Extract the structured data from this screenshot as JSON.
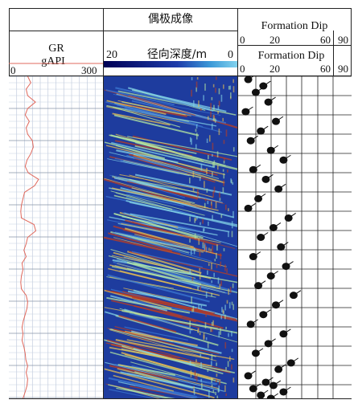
{
  "tracks": {
    "gr": {
      "label": "GR",
      "unit": "gAPI",
      "scale_min": "0",
      "scale_max": "300",
      "curve_color": "#e0685c"
    },
    "dipole": {
      "title": "偶极成像",
      "label": "径向深度/m",
      "scale_left": "20",
      "scale_right": "0"
    },
    "dip": {
      "title": "Formation Dip",
      "scale_ticks_top": [
        "0",
        "20",
        "60",
        "90"
      ],
      "sub_title": "Formation Dip",
      "scale_ticks_sub": [
        "0",
        "20",
        "60",
        "90"
      ]
    }
  },
  "chart_data": [
    {
      "type": "line",
      "title": "",
      "xlabel": "GR (gAPI)",
      "ylabel": "",
      "xlim": [
        0,
        300
      ],
      "series": [
        {
          "name": "GR",
          "x": [
            60,
            70,
            55,
            60,
            85,
            60,
            52,
            65,
            55,
            60,
            75,
            78,
            70,
            58,
            52,
            62,
            95,
            82,
            50,
            45,
            40,
            38,
            40,
            80,
            86,
            60,
            55,
            48,
            55,
            42,
            45,
            40,
            38,
            40,
            55,
            60,
            58,
            52,
            46,
            42,
            45,
            42,
            48,
            52,
            54,
            60,
            55,
            60,
            58,
            52,
            45,
            45,
            30,
            42,
            55,
            48,
            50,
            40,
            42,
            45,
            48
          ],
          "y": [
            0,
            0.02,
            0.04,
            0.06,
            0.08,
            0.1,
            0.12,
            0.14,
            0.16,
            0.18,
            0.2,
            0.22,
            0.24,
            0.26,
            0.28,
            0.3,
            0.32,
            0.34,
            0.36,
            0.38,
            0.4,
            0.42,
            0.44,
            0.46,
            0.48,
            0.5,
            0.52,
            0.54,
            0.56,
            0.58,
            0.6,
            0.62,
            0.64,
            0.66,
            0.68,
            0.7,
            0.72,
            0.74,
            0.76,
            0.78,
            0.8,
            0.82,
            0.84,
            0.86,
            0.88,
            0.9,
            0.92,
            0.94,
            0.96,
            0.98,
            1.0,
            0.15,
            0.33,
            0.45,
            0.51,
            0.57,
            0.63,
            0.71,
            0.79,
            0.87,
            0.95
          ]
        }
      ]
    },
    {
      "type": "heatmap",
      "title": "偶极成像",
      "xlabel": "径向深度/m",
      "xlim": [
        20,
        0
      ],
      "colormap": [
        "#000055",
        "#1e3caa",
        "#3c78d2",
        "#82d2e6",
        "#b4e6a0",
        "#e6be50",
        "#be3c1e"
      ]
    },
    {
      "type": "scatter",
      "title": "Formation Dip",
      "xlabel": "Formation Dip",
      "xlim": [
        0,
        90
      ],
      "series": [
        {
          "name": "dip",
          "x": [
            8,
            20,
            14,
            24,
            6,
            30,
            18,
            10,
            26,
            36,
            12,
            22,
            32,
            16,
            8,
            40,
            28,
            18,
            34,
            12,
            38,
            26,
            16,
            44,
            30,
            20,
            10,
            36,
            24,
            14,
            42,
            32,
            8,
            22,
            28,
            12,
            36,
            18,
            26
          ],
          "y": [
            0.01,
            0.03,
            0.05,
            0.08,
            0.11,
            0.14,
            0.17,
            0.2,
            0.23,
            0.26,
            0.29,
            0.32,
            0.35,
            0.38,
            0.41,
            0.44,
            0.47,
            0.5,
            0.53,
            0.56,
            0.59,
            0.62,
            0.65,
            0.68,
            0.71,
            0.74,
            0.77,
            0.8,
            0.83,
            0.86,
            0.89,
            0.91,
            0.93,
            0.95,
            0.96,
            0.97,
            0.98,
            0.99,
            1.0
          ]
        }
      ]
    }
  ]
}
